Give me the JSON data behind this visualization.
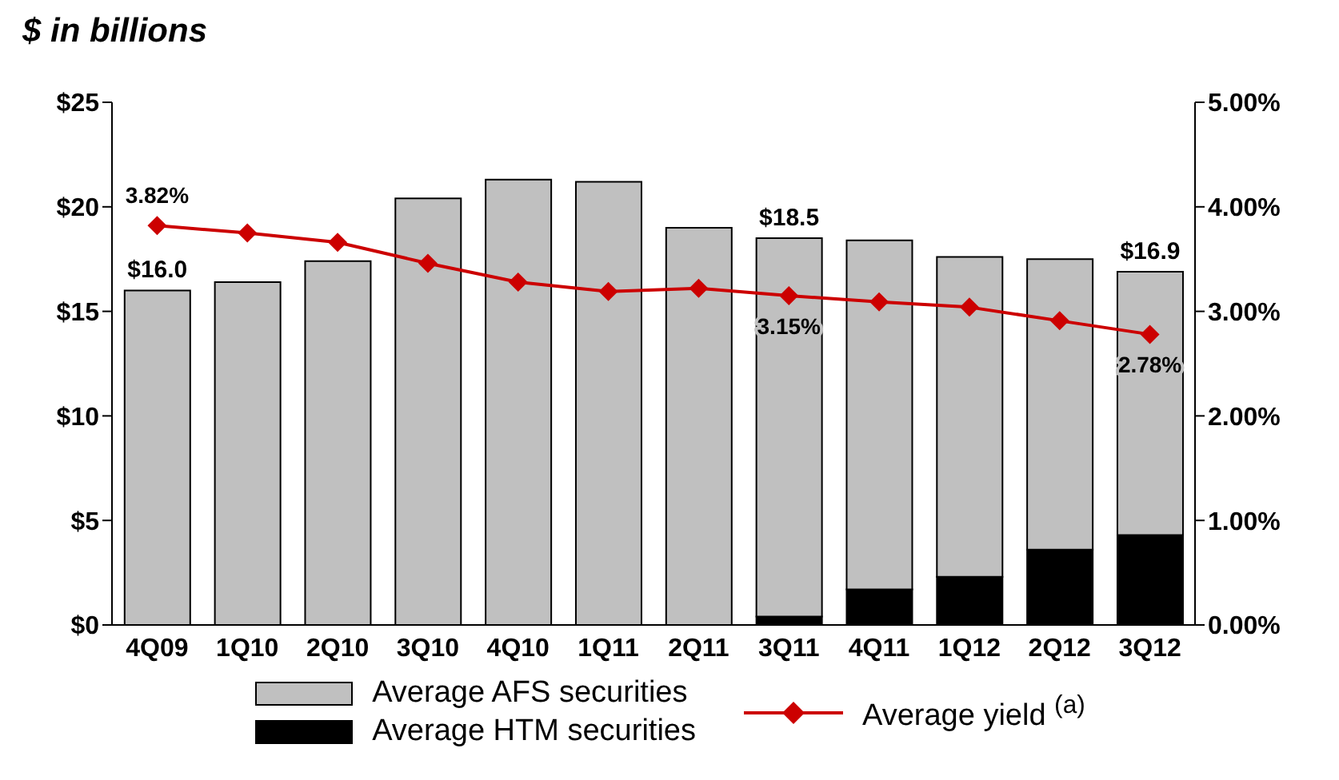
{
  "chart_data": {
    "type": "bar",
    "title": "$ in billions",
    "stacked": true,
    "categories": [
      "4Q09",
      "1Q10",
      "2Q10",
      "3Q10",
      "4Q10",
      "1Q11",
      "2Q11",
      "3Q11",
      "4Q11",
      "1Q12",
      "2Q12",
      "3Q12"
    ],
    "series": [
      {
        "name": "Average HTM securities",
        "color": "#000000",
        "values": [
          0,
          0,
          0,
          0,
          0,
          0,
          0,
          0.4,
          1.7,
          2.3,
          3.6,
          4.3
        ]
      },
      {
        "name": "Average AFS securities",
        "color": "#c0c0c0",
        "values": [
          16.0,
          16.4,
          17.4,
          20.4,
          21.3,
          21.2,
          19.0,
          18.1,
          16.7,
          15.3,
          13.9,
          12.6
        ]
      },
      {
        "name": "Average yield $^{(a)}$",
        "type": "line",
        "axis": "y2",
        "color": "#cc0000",
        "marker": "diamond",
        "values": [
          3.82,
          3.75,
          3.66,
          3.46,
          3.28,
          3.19,
          3.22,
          3.15,
          3.09,
          3.04,
          2.91,
          2.78
        ],
        "value_labels": [
          "3.82%",
          null,
          null,
          null,
          null,
          null,
          null,
          "3.15%",
          null,
          null,
          null,
          "2.78%"
        ]
      }
    ],
    "totals": [
      "$16.0",
      null,
      null,
      null,
      null,
      null,
      null,
      "$18.5",
      null,
      null,
      null,
      "$16.9"
    ],
    "ylim": [
      0,
      25
    ],
    "yticks": [
      {
        "value": 0,
        "label": "$0"
      },
      {
        "value": 5,
        "label": "$5"
      },
      {
        "value": 10,
        "label": "$10"
      },
      {
        "value": 15,
        "label": "$15"
      },
      {
        "value": 20,
        "label": "$20"
      },
      {
        "value": 25,
        "label": "$25"
      }
    ],
    "y2lim": [
      0,
      5
    ],
    "y2ticks": [
      {
        "value": 0,
        "label": "0.00%"
      },
      {
        "value": 1,
        "label": "1.00%"
      },
      {
        "value": 2,
        "label": "2.00%"
      },
      {
        "value": 3,
        "label": "3.00%"
      },
      {
        "value": 4,
        "label": "4.00%"
      },
      {
        "value": 5,
        "label": "5.00%"
      }
    ],
    "grid": false,
    "legend": "bottom"
  }
}
